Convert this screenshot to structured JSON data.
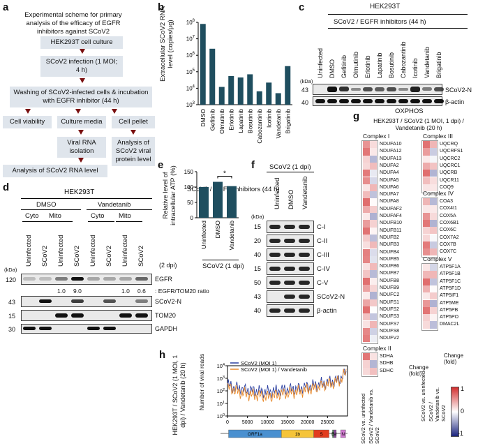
{
  "panel_a": {
    "letter": "a",
    "title": "Experimental scheme for primary analysis of the efficacy of EGFR inhibitors against SCoV2",
    "steps": {
      "culture": "HEK293T cell culture",
      "infection": "SCoV2 infection (1 MOI; 4 h)",
      "wash": "Washing of SCoV2-infected cells & incubation with EGFR inhibitor (44 h)",
      "viability": "Cell viability",
      "media": "Culture media",
      "pellet": "Cell pellet",
      "rna_iso": "Viral RNA isolation",
      "protein": "Analysis of SCoV2 viral protein level",
      "rna_level": "Analysis of SCoV2 RNA level"
    }
  },
  "panel_b": {
    "letter": "b",
    "ylabel": "Extracellular SCoV2 RNA level (copies/μg)",
    "xlabel": "SCoV2 / EGFR inhibitors (44 h)"
  },
  "panel_c": {
    "letter": "c",
    "cell": "HEK293T",
    "group": "SCoV2 / EGFR inhibitors (44 h)",
    "lanes": [
      "Uninfected",
      "DMSO",
      "Gefitinib",
      "Olmutinib",
      "Erlotinib",
      "Lapatinib",
      "Bosutinib",
      "Cabozantinib",
      "Icotinib",
      "Vandetanib",
      "Brigatinib"
    ],
    "kda": "(kDa)",
    "mw": [
      "43",
      "40"
    ],
    "labels": [
      "SCoV2-N",
      "β-actin"
    ]
  },
  "panel_d": {
    "letter": "d",
    "cell": "HEK293T",
    "groups": [
      "DMSO",
      "Vandetanib"
    ],
    "fractions": [
      "Cyto",
      "Mito",
      "Cyto",
      "Mito"
    ],
    "lanes": [
      "Uninfected",
      "SCoV2",
      "Uninfected",
      "SCoV2",
      "Uninfected",
      "SCoV2",
      "Uninfected",
      "SCoV2"
    ],
    "dpi": "(2 dpi)",
    "kda": "(kDa)",
    "mw": [
      "120",
      "43",
      "15",
      "30"
    ],
    "labels": [
      "EGFR",
      "SCoV2-N",
      "TOM20",
      "GAPDH"
    ],
    "ratios": [
      "1.0",
      "9.0",
      "1.0",
      "0.6"
    ],
    "ratio_label": ": EGFR/TOM20 ratio"
  },
  "panel_e": {
    "letter": "e",
    "ylabel": "Relative level of intracellular ATP (%)",
    "star": "*",
    "group": "SCoV2 (1 dpi)"
  },
  "panel_f": {
    "letter": "f",
    "group": "SCoV2 (1 dpi)",
    "lanes": [
      "Uninfected",
      "DMSO",
      "Vandetanib"
    ],
    "kda": "(kDa)",
    "mw": [
      "15",
      "20",
      "40",
      "15",
      "50",
      "43",
      "40"
    ],
    "labels": [
      "C-I",
      "C-II",
      "C-III",
      "C-IV",
      "C-V",
      "SCoV2-N",
      "β-actin"
    ]
  },
  "panel_g": {
    "letter": "g",
    "title": "OXPHOS",
    "subtitle": "HEK293T / SCoV2 (1 MOI, 1 dpi) / Vandetanib (20 h)",
    "complex1": {
      "name": "Complex I",
      "genes": [
        "NDUFA10",
        "NDUFA12",
        "NDUFA13",
        "NDUFA2",
        "NDUFA4",
        "NDUFA5",
        "NDUFA6",
        "NDUFA7",
        "NDUFA8",
        "NDUFAF2",
        "NDUFAF4",
        "NDUFB10",
        "NDUFB11",
        "NDUFB2",
        "NDUFB3",
        "NDUFB4",
        "NDUFB5",
        "NDUFB6",
        "NDUFB7",
        "NDUFB8",
        "NDUFB9",
        "NDUFC2",
        "NDUFS1",
        "NDUFS2",
        "NDUFS3",
        "NDUFS7",
        "NDUFS8",
        "NDUFV2"
      ]
    },
    "complex2": {
      "name": "Complex II",
      "genes": [
        "SDHA",
        "SDHB",
        "SDHC"
      ]
    },
    "complex3": {
      "name": "Complex III",
      "genes": [
        "UQCRQ",
        "UQCRFS1",
        "UQCRC2",
        "UQCRC1",
        "UQCRB",
        "UQCR11",
        "COQ9"
      ]
    },
    "complex4": {
      "name": "Complex IV",
      "genes": [
        "COA3",
        "COX4I1",
        "COX5A",
        "COX6B1",
        "COX6C",
        "COX7A2",
        "COX7B",
        "COX7C"
      ]
    },
    "complex5": {
      "name": "Complex V",
      "genes": [
        "ATP5F1A",
        "ATP5F1B",
        "ATP5F1C",
        "ATP5F1D",
        "ATP5IF1",
        "ATP5ME",
        "ATP5PB",
        "ATP5PO",
        "DMAC2L"
      ]
    },
    "col_labels": [
      "SCoV2 vs. uninfected",
      "SCoV2 / Vandetanib vs. SCoV2"
    ],
    "change_label": "Change (fold)",
    "scale_max": "1",
    "scale_mid": "0",
    "scale_min": "-1",
    "colors": {
      "pos": "#d32f2f",
      "neg": "#1a237e"
    }
  },
  "panel_h": {
    "letter": "h",
    "side_label": "HEK293T / SCoV2 (1 MOI, 1 dpi) / Vandetanib (20 h)",
    "ylabel": "Number of viral reads",
    "legend": [
      "SCoV2 (MOI 1)",
      "SCoV2 (MOI 1) / Vandetanib"
    ],
    "genome": [
      "ORF1a",
      "1b",
      "S",
      "E",
      "M",
      "N"
    ],
    "colors": {
      "s1": "#2b3fa0",
      "s2": "#e8892a"
    }
  },
  "chart_data": [
    {
      "type": "bar",
      "title": "",
      "ylabel": "Extracellular SCoV2 RNA level (copies/μg)",
      "xlabel": "SCoV2 / EGFR inhibitors (44 h)",
      "yscale": "log",
      "ylim": [
        1000,
        100000000
      ],
      "ytick_labels": [
        "10^3",
        "10^4",
        "10^5",
        "10^6",
        "10^7",
        "10^8"
      ],
      "categories": [
        "DMSO",
        "Gefitinib",
        "Olmutinib",
        "Erlotinib",
        "Lapatinib",
        "Bosutinib",
        "Cabozantinib",
        "Icotinib",
        "Vandetanib",
        "Brigatinib"
      ],
      "values": [
        80000000,
        2500000,
        12000,
        55000,
        45000,
        70000,
        6500,
        22000,
        5000,
        220000
      ],
      "color": "#1f4e5f"
    },
    {
      "type": "bar",
      "title": "",
      "ylabel": "Relative level of intracellular ATP (%)",
      "ylim": [
        0,
        150
      ],
      "yticks": [
        "0",
        "50",
        "100",
        "150"
      ],
      "categories": [
        "Uninfected",
        "DMSO",
        "Vandetanib"
      ],
      "values": [
        100,
        117,
        103
      ],
      "color": "#1f4e5f"
    },
    {
      "type": "line",
      "title": "",
      "ylabel": "Number of viral reads",
      "yscale": "log",
      "ylim": [
        1,
        10000
      ],
      "ytick_labels": [
        "10^0",
        "10^1",
        "10^2",
        "10^3",
        "10^4"
      ],
      "xlim": [
        0,
        30000
      ],
      "xticks": [
        "0",
        "5000",
        "10000",
        "15000",
        "20000",
        "25000"
      ],
      "series": [
        {
          "name": "SCoV2 (MOI 1)",
          "values": [
            300,
            200,
            150,
            120,
            110,
            100,
            90,
            80,
            90,
            100,
            120,
            130,
            140,
            160,
            200,
            250,
            300,
            400,
            500,
            600,
            900,
            3000
          ]
        },
        {
          "name": "SCoV2 (MOI 1) / Vandetanib",
          "values": [
            200,
            120,
            80,
            60,
            50,
            45,
            40,
            35,
            40,
            50,
            60,
            70,
            80,
            90,
            120,
            150,
            200,
            280,
            350,
            450,
            700,
            2500
          ]
        }
      ]
    }
  ]
}
